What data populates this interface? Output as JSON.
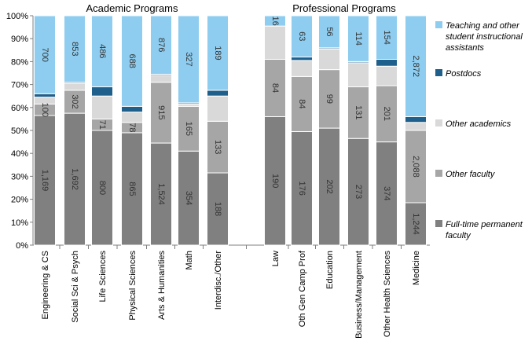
{
  "chart_data": {
    "type": "bar",
    "stacked": "percent",
    "yticks": [
      "0%",
      "10%",
      "20%",
      "30%",
      "40%",
      "50%",
      "60%",
      "70%",
      "80%",
      "90%",
      "100%"
    ],
    "ylim": [
      0,
      100
    ],
    "groups": [
      {
        "title": "Academic Programs",
        "categories": [
          "Engineering & CS",
          "Social Sci & Psych",
          "Life Sciences",
          "Physical Sciences",
          "Arts & Humanities",
          "Math",
          "Interdisc./Other"
        ]
      },
      {
        "title": "Professional Programs",
        "categories": [
          "Law",
          "Oth Gen Camp Prof",
          "Education",
          "Business/Management",
          "Other Health Sciences",
          "Medicine"
        ]
      }
    ],
    "categories": [
      "Engineering & CS",
      "Social Sci & Psych",
      "Life Sciences",
      "Physical Sciences",
      "Arts & Humanities",
      "Math",
      "Interdisc./Other",
      "Law",
      "Oth Gen Camp Prof",
      "Education",
      "Business/Management",
      "Other Health Sciences",
      "Medicine"
    ],
    "series": [
      {
        "name": "Full-time permanent faculty",
        "color": "#808080",
        "percent": [
          56.5,
          57.5,
          50,
          49,
          44.5,
          41,
          31.5,
          56,
          49.5,
          51,
          46.5,
          45,
          18.5
        ],
        "labels": [
          "1,169",
          "1,692",
          "800",
          "865",
          "1,524",
          "354",
          "188",
          "190",
          "176",
          "202",
          "273",
          "374",
          "1,244"
        ]
      },
      {
        "name": "Other faculty",
        "color": "#a6a6a6",
        "percent": [
          5,
          10,
          5,
          4.5,
          26.5,
          19.5,
          22.5,
          25,
          24,
          25.5,
          22.5,
          24.5,
          31.5
        ],
        "labels": [
          "100",
          "302",
          "71",
          "78",
          "915",
          "165",
          "133",
          "84",
          "84",
          "99",
          "131",
          "201",
          "2,088"
        ]
      },
      {
        "name": "Other academics",
        "color": "#d9d9d9",
        "percent": [
          3,
          3,
          10,
          4.5,
          3,
          1,
          11,
          14.5,
          7,
          9,
          10.5,
          8.5,
          3.5
        ],
        "labels": [
          "",
          "",
          "",
          "",
          "",
          "",
          "",
          "",
          "",
          "",
          "",
          "",
          ""
        ]
      },
      {
        "name": "Postdocs",
        "color": "#1f5f8b",
        "percent": [
          1.5,
          0.5,
          4,
          2.5,
          0.5,
          0.5,
          2.5,
          0,
          1.5,
          0.5,
          0.5,
          3,
          2.5
        ],
        "labels": [
          "",
          "",
          "",
          "",
          "",
          "",
          "",
          "",
          "",
          "",
          "",
          "",
          ""
        ]
      },
      {
        "name": "Teaching and other student instructional assistants",
        "color": "#8ecdf0",
        "percent": [
          34,
          29,
          31,
          39.5,
          25.5,
          38,
          32.5,
          4.5,
          18,
          14,
          20,
          19,
          44
        ],
        "labels": [
          "700",
          "853",
          "486",
          "688",
          "876",
          "327",
          "189",
          "16",
          "63",
          "56",
          "114",
          "154",
          "2,872"
        ]
      }
    ],
    "legend": {
      "position": "right",
      "entries": [
        {
          "lines": [
            "Teaching and other",
            "student instructional",
            "assistants"
          ],
          "color": "#8ecdf0"
        },
        {
          "lines": [
            "Postdocs"
          ],
          "color": "#1f5f8b"
        },
        {
          "lines": [
            "Other academics"
          ],
          "color": "#d9d9d9"
        },
        {
          "lines": [
            "Other faculty"
          ],
          "color": "#a6a6a6"
        },
        {
          "lines": [
            "Full-time permanent",
            "faculty"
          ],
          "color": "#808080"
        }
      ]
    },
    "grid": false
  }
}
